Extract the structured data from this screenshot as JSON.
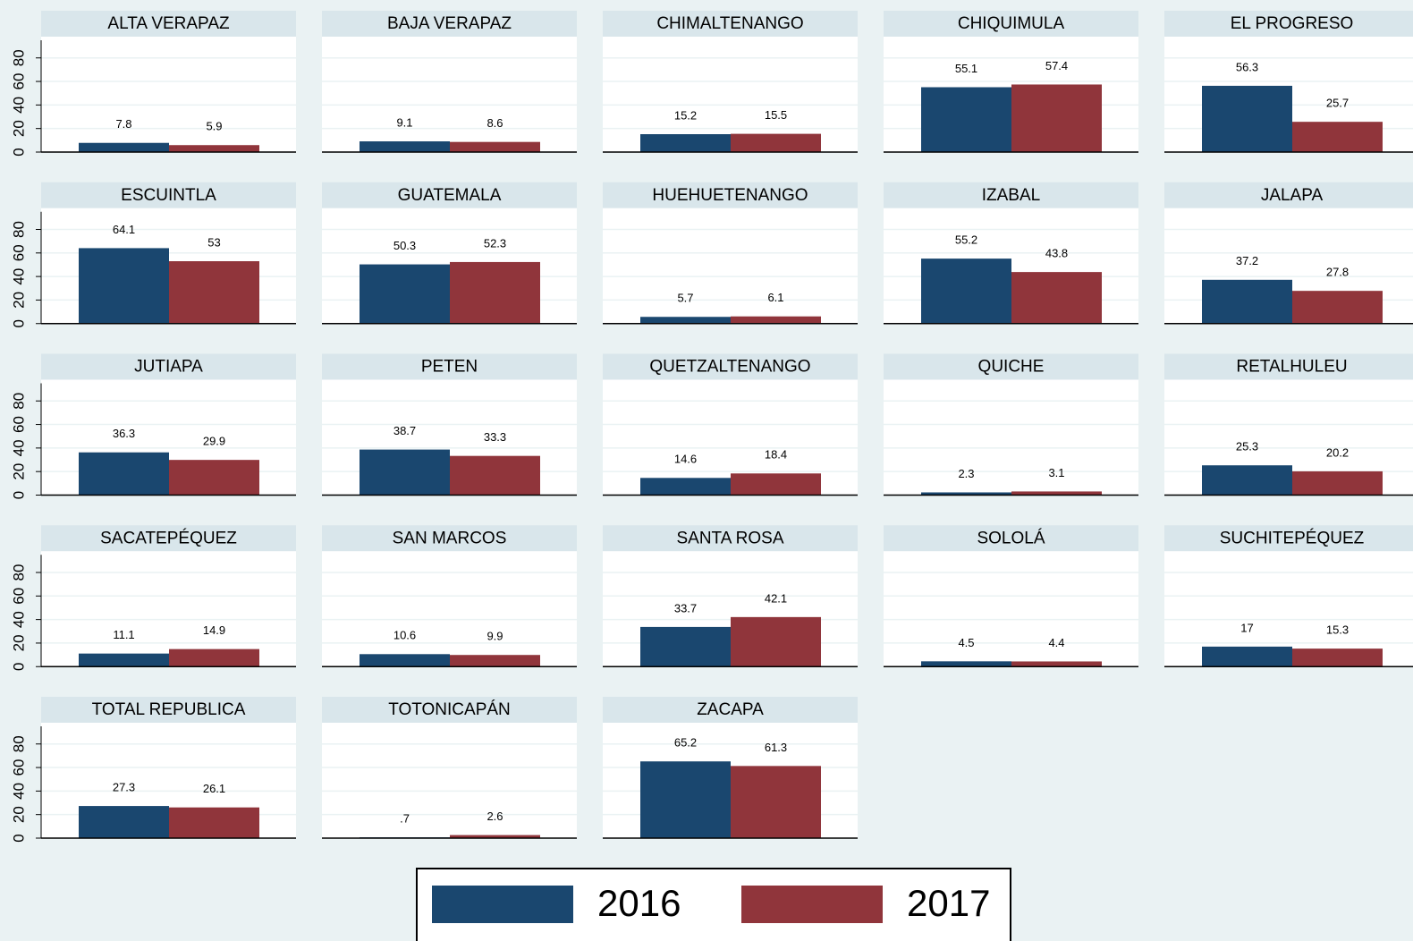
{
  "chart_data": {
    "type": "bar",
    "series": [
      {
        "name": "2016",
        "color": "#1a476f"
      },
      {
        "name": "2017",
        "color": "#90353b"
      }
    ],
    "ylim": [
      0,
      95
    ],
    "yticks": [
      0,
      20,
      40,
      60,
      80
    ],
    "grid": true,
    "panels": [
      {
        "title": "ALTA VERAPAZ",
        "values": [
          7.8,
          5.9
        ]
      },
      {
        "title": "BAJA VERAPAZ",
        "values": [
          9.1,
          8.6
        ]
      },
      {
        "title": "CHIMALTENANGO",
        "values": [
          15.2,
          15.5
        ]
      },
      {
        "title": "CHIQUIMULA",
        "values": [
          55.1,
          57.4
        ]
      },
      {
        "title": "EL PROGRESO",
        "values": [
          56.3,
          25.7
        ]
      },
      {
        "title": "ESCUINTLA",
        "values": [
          64.1,
          53
        ]
      },
      {
        "title": "GUATEMALA",
        "values": [
          50.3,
          52.3
        ]
      },
      {
        "title": "HUEHUETENANGO",
        "values": [
          5.7,
          6.1
        ]
      },
      {
        "title": "IZABAL",
        "values": [
          55.2,
          43.8
        ]
      },
      {
        "title": "JALAPA",
        "values": [
          37.2,
          27.8
        ]
      },
      {
        "title": "JUTIAPA",
        "values": [
          36.3,
          29.9
        ]
      },
      {
        "title": "PETEN",
        "values": [
          38.7,
          33.3
        ]
      },
      {
        "title": "QUETZALTENANGO",
        "values": [
          14.6,
          18.4
        ]
      },
      {
        "title": "QUICHE",
        "values": [
          2.3,
          3.1
        ]
      },
      {
        "title": "RETALHULEU",
        "values": [
          25.3,
          20.2
        ]
      },
      {
        "title": "SACATEPÉQUEZ",
        "values": [
          11.1,
          14.9
        ]
      },
      {
        "title": "SAN MARCOS",
        "values": [
          10.6,
          9.9
        ]
      },
      {
        "title": "SANTA ROSA",
        "values": [
          33.7,
          42.1
        ]
      },
      {
        "title": "SOLOLÁ",
        "values": [
          4.5,
          4.4
        ]
      },
      {
        "title": "SUCHITEPÉQUEZ",
        "values": [
          17,
          15.3
        ]
      },
      {
        "title": "TOTAL REPUBLICA",
        "values": [
          27.3,
          26.1
        ]
      },
      {
        "title": "TOTONICAPÁN",
        "values": [
          0.7,
          2.6
        ],
        "value_labels": [
          ".7",
          "2.6"
        ]
      },
      {
        "title": "ZACAPA",
        "values": [
          65.2,
          61.3
        ]
      }
    ]
  }
}
